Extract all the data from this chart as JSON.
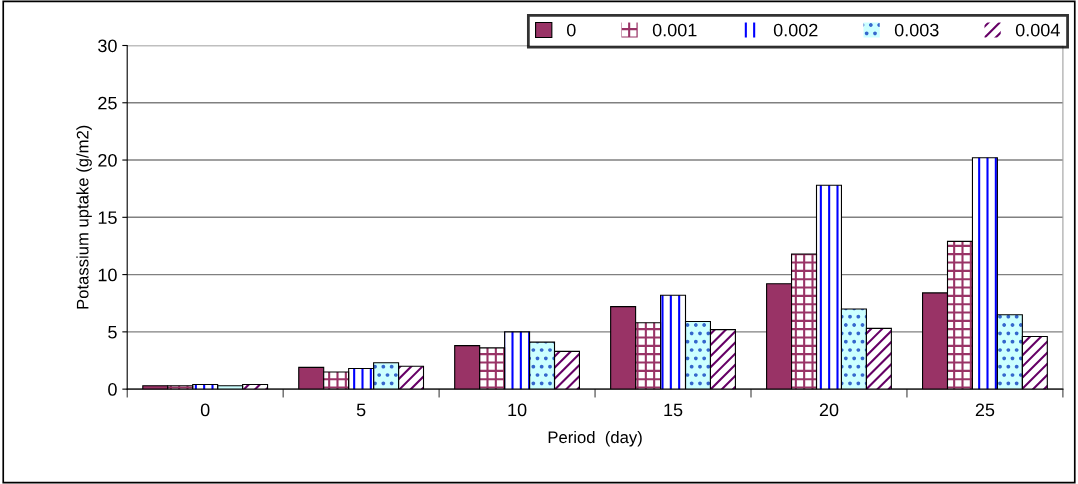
{
  "chart_data": {
    "type": "bar",
    "xlabel": "Period  (day)",
    "ylabel": "Potassium uptake (g/m2)",
    "categories": [
      "0",
      "5",
      "10",
      "15",
      "20",
      "25"
    ],
    "series": [
      {
        "name": "0",
        "color": "#993366",
        "values": [
          0.3,
          1.9,
          3.8,
          7.2,
          9.2,
          8.4
        ]
      },
      {
        "name": "0.001",
        "color": "#993366",
        "values": [
          0.3,
          1.5,
          3.6,
          5.8,
          11.8,
          12.9
        ]
      },
      {
        "name": "0.002",
        "color": "#0000ff",
        "values": [
          0.4,
          1.8,
          5.0,
          8.2,
          17.8,
          20.2
        ]
      },
      {
        "name": "0.003",
        "color": "#ccffff",
        "values": [
          0.3,
          2.3,
          4.1,
          5.9,
          7.0,
          6.5
        ]
      },
      {
        "name": "0.004",
        "color": "#660066",
        "values": [
          0.4,
          2.0,
          3.3,
          5.2,
          5.3,
          4.6
        ]
      }
    ],
    "ylim": [
      0,
      30
    ],
    "yticks": [
      0,
      5,
      10,
      15,
      20,
      25,
      30
    ],
    "grid": "y",
    "legend": "top right"
  }
}
